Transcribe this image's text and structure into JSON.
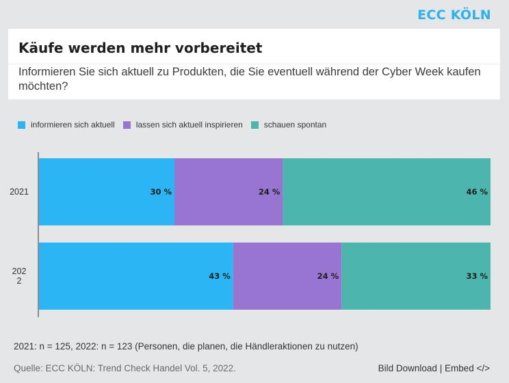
{
  "brand": "ECC KÖLN",
  "header": {
    "title": "Käufe werden mehr vorbereitet",
    "subtitle": "Informieren Sie sich aktuell zu Produkten, die Sie eventuell während der Cyber Week kaufen möchten?"
  },
  "chart_data": {
    "type": "bar",
    "orientation": "horizontal",
    "stacked": true,
    "percent_stacked": true,
    "categories": [
      "2021",
      "2022"
    ],
    "category_labels": [
      "2021",
      "202\n2"
    ],
    "series": [
      {
        "name": "informieren sich aktuell",
        "values": [
          30,
          43
        ],
        "labels": [
          "30 %",
          "43 %"
        ],
        "color": "#2bb5f5"
      },
      {
        "name": "lassen sich aktuell inspirieren",
        "values": [
          24,
          24
        ],
        "labels": [
          "24 %",
          "24 %"
        ],
        "color": "#9775d1"
      },
      {
        "name": "schauen spontan",
        "values": [
          46,
          33
        ],
        "labels": [
          "46 %",
          "33 %"
        ],
        "color": "#4db6ac"
      }
    ],
    "xlim": [
      0,
      100
    ],
    "legend_position": "top-left",
    "grid": false
  },
  "footer": {
    "note": "2021: n = 125, 2022: n = 123 (Personen, die planen, die Händleraktionen zu nutzen)",
    "source": "Quelle: ECC KÖLN: Trend Check Handel Vol. 5, 2022.",
    "download_label": "Bild Download",
    "separator": " | ",
    "embed_label": "Embed </>"
  }
}
